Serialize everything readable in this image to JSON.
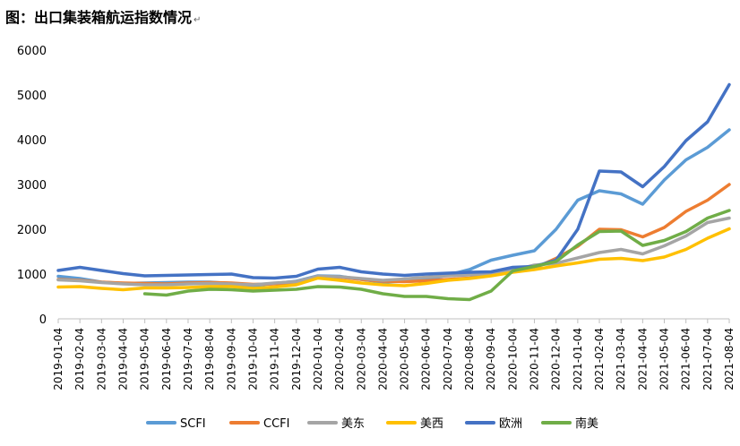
{
  "title": "图：出口集装箱航运指数情况",
  "chart_data": {
    "type": "line",
    "title": "图：出口集装箱航运指数情况",
    "xlabel": "",
    "ylabel": "",
    "ylim": [
      0,
      6000
    ],
    "yticks": [
      0,
      1000,
      2000,
      3000,
      4000,
      5000,
      6000
    ],
    "x": [
      "2019-01-04",
      "2019-02-04",
      "2019-03-04",
      "2019-04-04",
      "2019-05-04",
      "2019-06-04",
      "2019-07-04",
      "2019-08-04",
      "2019-09-04",
      "2019-10-04",
      "2019-11-04",
      "2019-12-04",
      "2020-01-04",
      "2020-02-04",
      "2020-03-04",
      "2020-04-04",
      "2020-05-04",
      "2020-06-04",
      "2020-07-04",
      "2020-08-04",
      "2020-09-04",
      "2020-10-04",
      "2020-11-04",
      "2020-12-04",
      "2021-01-04",
      "2021-02-04",
      "2021-03-04",
      "2021-04-04",
      "2021-05-04",
      "2021-06-04",
      "2021-07-04",
      "2021-08-04"
    ],
    "grid": false,
    "legend_position": "bottom",
    "series": [
      {
        "name": "SCFI",
        "color": "#5b9bd5",
        "values": [
          950,
          900,
          820,
          790,
          800,
          810,
          820,
          820,
          790,
          740,
          790,
          840,
          960,
          950,
          880,
          820,
          840,
          870,
          980,
          1100,
          1310,
          1420,
          1520,
          2000,
          2650,
          2860,
          2790,
          2560,
          3100,
          3550,
          3830,
          4220
        ]
      },
      {
        "name": "CCFI",
        "color": "#ed7d31",
        "values": [
          880,
          860,
          820,
          800,
          790,
          780,
          800,
          810,
          800,
          770,
          780,
          800,
          920,
          930,
          880,
          840,
          830,
          850,
          880,
          910,
          980,
          1060,
          1130,
          1350,
          1620,
          2000,
          1990,
          1830,
          2040,
          2400,
          2650,
          3000
        ]
      },
      {
        "name": "美东",
        "color": "#a5a5a5",
        "values": [
          870,
          850,
          810,
          780,
          760,
          760,
          780,
          790,
          780,
          760,
          800,
          830,
          950,
          940,
          900,
          860,
          890,
          930,
          960,
          980,
          1020,
          1080,
          1200,
          1240,
          1360,
          1480,
          1550,
          1450,
          1630,
          1850,
          2150,
          2250
        ]
      },
      {
        "name": "美西",
        "color": "#ffc000",
        "values": [
          710,
          720,
          680,
          650,
          690,
          690,
          700,
          720,
          720,
          680,
          710,
          760,
          910,
          860,
          800,
          760,
          740,
          790,
          860,
          900,
          960,
          1040,
          1100,
          1180,
          1250,
          1330,
          1350,
          1300,
          1380,
          1550,
          1800,
          2010
        ]
      },
      {
        "name": "欧洲",
        "color": "#4472c4",
        "values": [
          1080,
          1150,
          1080,
          1010,
          960,
          970,
          980,
          990,
          1000,
          920,
          910,
          950,
          1110,
          1150,
          1050,
          1000,
          970,
          1000,
          1020,
          1040,
          1050,
          1150,
          1170,
          1310,
          2000,
          3300,
          3280,
          2950,
          3400,
          3980,
          4400,
          5230
        ]
      },
      {
        "name": "南美",
        "color": "#70ad47",
        "values": [
          null,
          null,
          null,
          null,
          560,
          530,
          620,
          660,
          650,
          620,
          640,
          660,
          720,
          710,
          660,
          560,
          500,
          500,
          450,
          430,
          620,
          1070,
          1170,
          1280,
          1650,
          1950,
          1960,
          1640,
          1750,
          1950,
          2250,
          2420
        ]
      }
    ]
  }
}
